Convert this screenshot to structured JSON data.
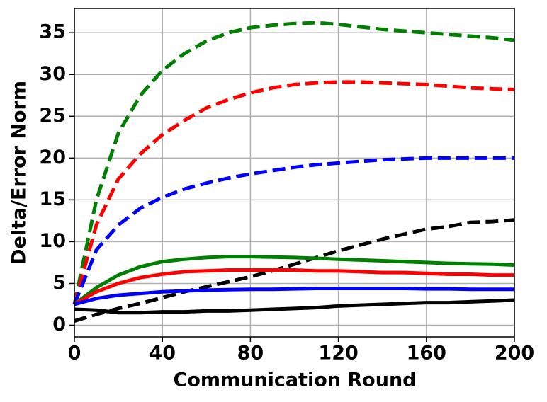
{
  "chart_data": {
    "type": "line",
    "xlabel": "Communication Round",
    "ylabel": "Delta/Error Norm",
    "x": [
      0,
      10,
      20,
      30,
      40,
      50,
      60,
      70,
      80,
      90,
      100,
      110,
      120,
      130,
      140,
      150,
      160,
      170,
      180,
      190,
      200
    ],
    "series": [
      {
        "color": "#008000",
        "dashed": true,
        "values": [
          2.5,
          15,
          23,
          27.5,
          30.5,
          32.5,
          34,
          35,
          35.6,
          35.9,
          36.1,
          36.2,
          36.0,
          35.7,
          35.4,
          35.2,
          35.0,
          34.8,
          34.6,
          34.4,
          34.1
        ]
      },
      {
        "color": "#ff0000",
        "dashed": true,
        "values": [
          2.5,
          12,
          17.5,
          20.5,
          22.8,
          24.5,
          26,
          27,
          27.8,
          28.4,
          28.8,
          29,
          29.1,
          29.1,
          29,
          28.9,
          28.8,
          28.6,
          28.4,
          28.3,
          28.2
        ]
      },
      {
        "color": "#0000ff",
        "dashed": true,
        "values": [
          2.5,
          9,
          12,
          14,
          15.3,
          16.3,
          17,
          17.6,
          18.1,
          18.5,
          18.9,
          19.2,
          19.4,
          19.6,
          19.8,
          19.9,
          20,
          20,
          20,
          20,
          20
        ]
      },
      {
        "color": "#000000",
        "dashed": true,
        "values": [
          0.5,
          1.3,
          2,
          2.6,
          3.3,
          4,
          4.6,
          5.2,
          5.8,
          6.5,
          7.3,
          8.1,
          8.9,
          9.6,
          10.3,
          10.9,
          11.5,
          11.8,
          12.3,
          12.4,
          12.6
        ]
      },
      {
        "color": "#008000",
        "dashed": false,
        "values": [
          2.5,
          4.5,
          6,
          7,
          7.6,
          7.9,
          8.1,
          8.2,
          8.2,
          8.15,
          8.1,
          8,
          7.9,
          7.8,
          7.7,
          7.6,
          7.5,
          7.4,
          7.35,
          7.3,
          7.2
        ]
      },
      {
        "color": "#ff0000",
        "dashed": false,
        "values": [
          2.5,
          4,
          5,
          5.7,
          6.1,
          6.4,
          6.5,
          6.6,
          6.6,
          6.6,
          6.6,
          6.5,
          6.5,
          6.4,
          6.3,
          6.3,
          6.2,
          6.1,
          6.1,
          6.0,
          6.0
        ]
      },
      {
        "color": "#0000ff",
        "dashed": false,
        "values": [
          2.5,
          3.2,
          3.6,
          3.8,
          4.0,
          4.1,
          4.2,
          4.25,
          4.3,
          4.3,
          4.35,
          4.4,
          4.4,
          4.4,
          4.4,
          4.4,
          4.35,
          4.35,
          4.3,
          4.3,
          4.3
        ]
      },
      {
        "color": "#000000",
        "dashed": false,
        "values": [
          1.9,
          1.8,
          1.5,
          1.5,
          1.6,
          1.6,
          1.7,
          1.7,
          1.8,
          1.9,
          2.0,
          2.1,
          2.3,
          2.4,
          2.5,
          2.6,
          2.7,
          2.7,
          2.8,
          2.9,
          3.0
        ]
      }
    ],
    "xlim": [
      0,
      200
    ],
    "xticks": [
      0,
      40,
      80,
      120,
      160,
      200
    ],
    "ylim": [
      -1.4,
      37.9
    ],
    "yticks": [
      0,
      5,
      10,
      15,
      20,
      25,
      30,
      35
    ],
    "grid": true
  }
}
